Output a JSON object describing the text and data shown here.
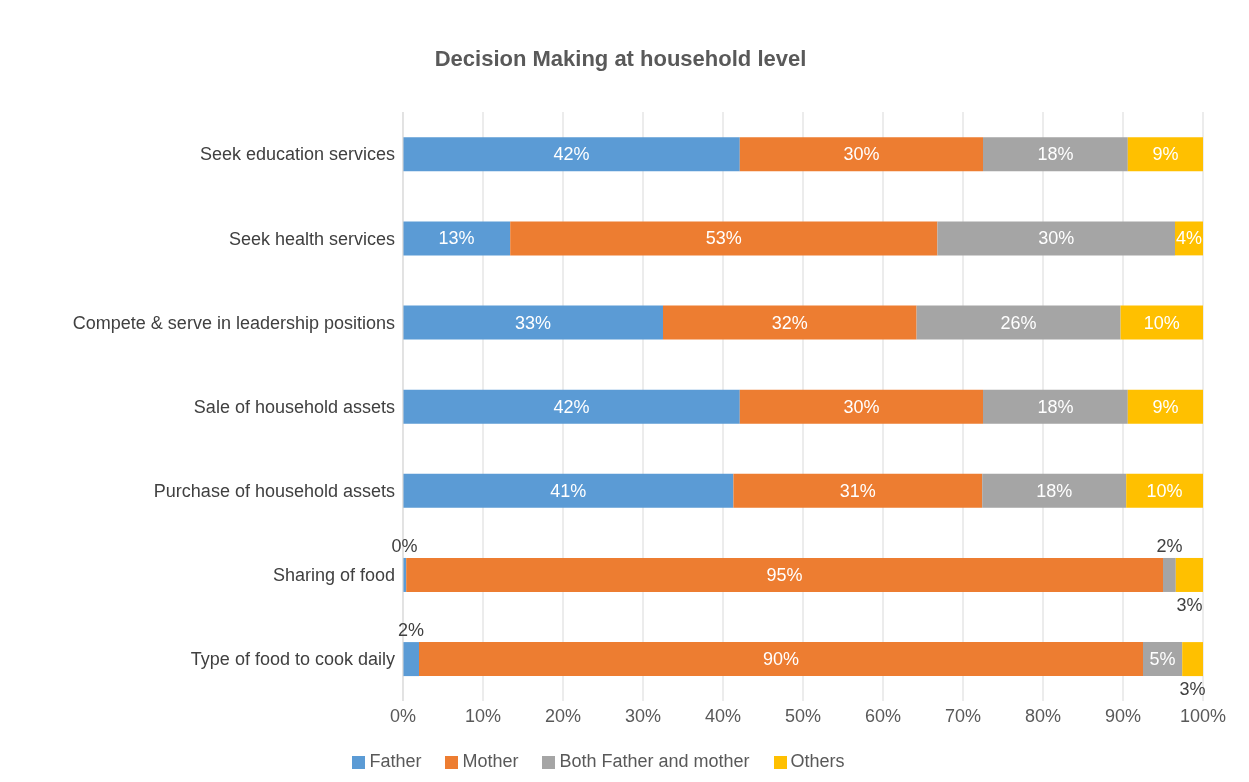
{
  "chart_data": {
    "type": "bar",
    "orientation": "horizontal",
    "stacked": true,
    "title": "Decision Making at household level",
    "categories": [
      "Seek education services",
      "Seek health services",
      "Compete & serve in leadership positions",
      "Sale of household assets",
      "Purchase of household assets",
      "Sharing of food",
      "Type of food to cook daily"
    ],
    "series": [
      {
        "name": "Father",
        "color": "#5b9bd5",
        "values": [
          42.1,
          13.4,
          32.5,
          42.1,
          41.3,
          0.4,
          2.0
        ],
        "value_labels": [
          "42%",
          "13%",
          "33%",
          "42%",
          "41%",
          "0%",
          "2%"
        ]
      },
      {
        "name": "Mother",
        "color": "#ed7d31",
        "values": [
          30.4,
          53.4,
          31.7,
          30.4,
          31.1,
          94.6,
          90.5
        ],
        "value_labels": [
          "30%",
          "53%",
          "32%",
          "30%",
          "31%",
          "95%",
          "90%"
        ]
      },
      {
        "name": "Both Father and mother",
        "color": "#a5a5a5",
        "values": [
          18.1,
          29.7,
          25.5,
          18.1,
          18.0,
          1.6,
          4.9
        ],
        "value_labels": [
          "18%",
          "30%",
          "26%",
          "18%",
          "18%",
          "2%",
          "5%"
        ]
      },
      {
        "name": "Others",
        "color": "#ffc000",
        "values": [
          9.4,
          3.5,
          10.3,
          9.4,
          9.6,
          3.4,
          2.6
        ],
        "value_labels": [
          "9%",
          "4%",
          "10%",
          "9%",
          "10%",
          "3%",
          "3%"
        ]
      }
    ],
    "xlim": [
      0,
      100
    ],
    "xticks": [
      {
        "value": 0,
        "label": "0%"
      },
      {
        "value": 10,
        "label": "10%"
      },
      {
        "value": 20,
        "label": "20%"
      },
      {
        "value": 30,
        "label": "30%"
      },
      {
        "value": 40,
        "label": "40%"
      },
      {
        "value": 50,
        "label": "50%"
      },
      {
        "value": 60,
        "label": "60%"
      },
      {
        "value": 70,
        "label": "70%"
      },
      {
        "value": 80,
        "label": "80%"
      },
      {
        "value": 90,
        "label": "90%"
      },
      {
        "value": 100,
        "label": "100%"
      }
    ],
    "grid": "x",
    "legend": "bottom"
  }
}
